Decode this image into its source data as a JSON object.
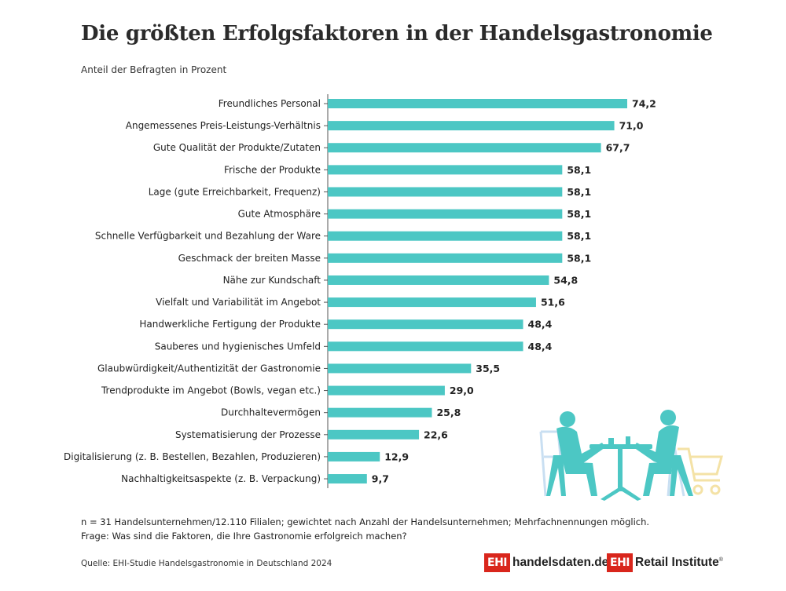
{
  "header": {
    "title": "Die größten Erfolgsfaktoren in der Handelsgastronomie",
    "subtitle": "Anteil der Befragten in Prozent"
  },
  "chart_data": {
    "type": "bar",
    "orientation": "horizontal",
    "categories": [
      "Freundliches Personal",
      "Angemessenes Preis-Leistungs-Verhältnis",
      "Gute Qualität der Produkte/Zutaten",
      "Frische der Produkte",
      "Lage (gute Erreichbarkeit, Frequenz)",
      "Gute Atmosphäre",
      "Schnelle Verfügbarkeit und Bezahlung der Ware",
      "Geschmack der breiten Masse",
      "Nähe zur Kundschaft",
      "Vielfalt und Variabilität im Angebot",
      "Handwerkliche Fertigung der Produkte",
      "Sauberes und hygienisches Umfeld",
      "Glaubwürdigkeit/Authentizität der Gastronomie",
      "Trendprodukte im Angebot (Bowls, vegan etc.)",
      "Durchhaltevermögen",
      "Systematisierung der Prozesse",
      "Digitalisierung (z. B. Bestellen, Bezahlen, Produzieren)",
      "Nachhaltigkeitsaspekte (z. B. Verpackung)"
    ],
    "values": [
      74.2,
      71.0,
      67.7,
      58.1,
      58.1,
      58.1,
      58.1,
      58.1,
      54.8,
      51.6,
      48.4,
      48.4,
      35.5,
      29.0,
      25.8,
      22.6,
      12.9,
      9.7
    ],
    "value_labels": [
      "74,2",
      "71,0",
      "67,7",
      "58,1",
      "58,1",
      "58,1",
      "58,1",
      "58,1",
      "54,8",
      "51,6",
      "48,4",
      "48,4",
      "35,5",
      "29,0",
      "25,8",
      "22,6",
      "12,9",
      "9,7"
    ],
    "title": "Die größten Erfolgsfaktoren in der Handelsgastronomie",
    "subtitle": "Anteil der Befragten in Prozent",
    "xlim": [
      0,
      100
    ],
    "grid": false,
    "bar_color": "#4cc7c4"
  },
  "notes": {
    "line1": "n = 31 Handelsunternehmen/12.110 Filialen; gewichtet nach Anzahl der Handelsunternehmen; Mehrfachnennungen möglich.",
    "line2": "Frage: Was sind die Faktoren, die Ihre Gastronomie erfolgreich machen?"
  },
  "source": "Quelle: EHI-Studie Handelsgastronomie in Deutschland 2024",
  "logos": {
    "box_text": "EHI",
    "site": "handelsdaten.de",
    "institute": "Retail Institute",
    "registered": "®",
    "brand_color": "#d9261c"
  },
  "illustration": {
    "icon": "people-at-cafe-table-icon",
    "color": "#4cc7c4"
  }
}
